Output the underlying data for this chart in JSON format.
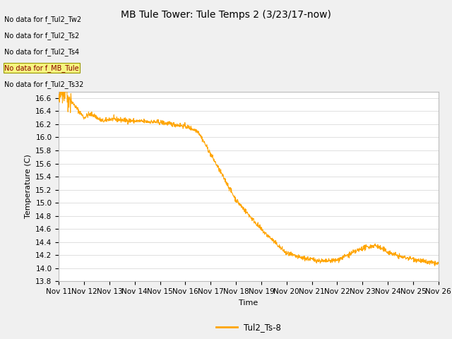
{
  "title": "MB Tule Tower: Tule Temps 2 (3/23/17-now)",
  "xlabel": "Time",
  "ylabel": "Temperature (C)",
  "line_color": "#FFA500",
  "line_label": "Tul2_Ts-8",
  "ylim": [
    13.8,
    16.7
  ],
  "yticks": [
    13.8,
    14.0,
    14.2,
    14.4,
    14.6,
    14.8,
    15.0,
    15.2,
    15.4,
    15.6,
    15.8,
    16.0,
    16.2,
    16.4,
    16.6
  ],
  "xtick_labels": [
    "Nov 11",
    "Nov 12",
    "Nov 13",
    "Nov 14",
    "Nov 15",
    "Nov 16",
    "Nov 17",
    "Nov 18",
    "Nov 19",
    "Nov 20",
    "Nov 21",
    "Nov 22",
    "Nov 23",
    "Nov 24",
    "Nov 25",
    "Nov 26"
  ],
  "no_data_labels": [
    "No data for f_Tul2_Tw2",
    "No data for f_Tul2_Ts2",
    "No data for f_Tul2_Ts4",
    "No data for f_MB_Tule",
    "No data for f_Tul2_Ts32"
  ],
  "highlighted_label_index": 3,
  "background_color": "#f0f0f0",
  "plot_bg_color": "#ffffff",
  "grid_color": "#e0e0e0",
  "title_fontsize": 10,
  "axis_fontsize": 8,
  "tick_fontsize": 7.5,
  "no_data_fontsize": 7
}
